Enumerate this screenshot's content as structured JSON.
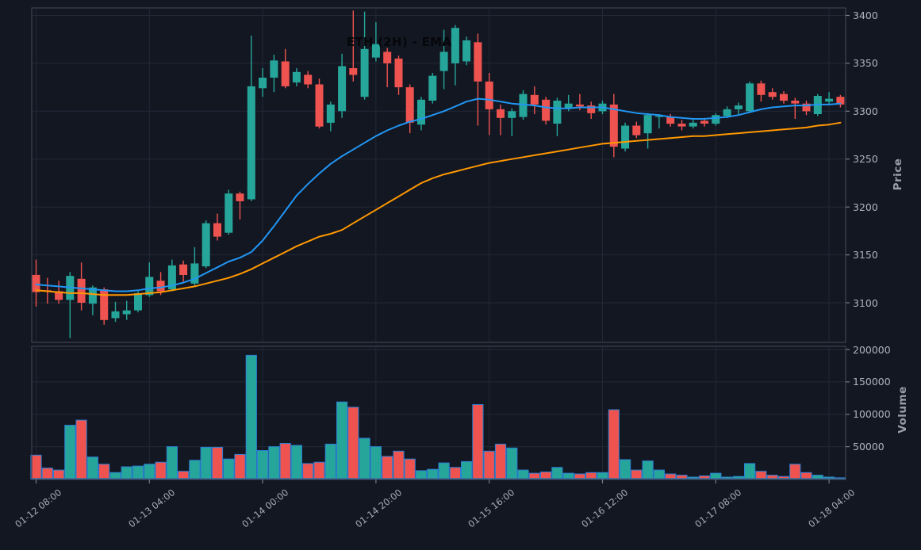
{
  "chart_data": {
    "type": "candlestick",
    "title": "ETH (2H) - EMA",
    "symbol": "ETH",
    "timeframe": "2H",
    "overlay": "EMA",
    "price_axis_label": "Price",
    "volume_axis_label": "Volume",
    "legend_position": "none",
    "grid": true,
    "price_ticks": [
      3100,
      3150,
      3200,
      3250,
      3300,
      3350,
      3400
    ],
    "volume_ticks": [
      50000,
      100000,
      150000,
      200000
    ],
    "price_axis_range": [
      3058,
      3408
    ],
    "volume_axis_range": [
      0,
      205000
    ],
    "x_tick_labels": [
      "01-12 08:00",
      "01-13 04:00",
      "01-14 00:00",
      "01-14 20:00",
      "01-15 16:00",
      "01-16 12:00",
      "01-17 08:00",
      "01-18 04:00"
    ],
    "x_tick_candle_indices": [
      0,
      10,
      20,
      30,
      40,
      50,
      60,
      70
    ],
    "ohlc": [
      [
        3129,
        3145,
        3096,
        3111
      ],
      [
        3113,
        3126,
        3099,
        3112
      ],
      [
        3112,
        3123,
        3099,
        3103
      ],
      [
        3103,
        3132,
        3063,
        3128
      ],
      [
        3125,
        3142,
        3092,
        3100
      ],
      [
        3099,
        3118,
        3087,
        3116
      ],
      [
        3114,
        3116,
        3077,
        3082
      ],
      [
        3084,
        3101,
        3080,
        3091
      ],
      [
        3088,
        3102,
        3082,
        3092
      ],
      [
        3092,
        3112,
        3090,
        3110
      ],
      [
        3108,
        3142,
        3106,
        3127
      ],
      [
        3123,
        3132,
        3108,
        3112
      ],
      [
        3114,
        3145,
        3112,
        3139
      ],
      [
        3140,
        3144,
        3122,
        3129
      ],
      [
        3120,
        3158,
        3118,
        3141
      ],
      [
        3138,
        3186,
        3136,
        3183
      ],
      [
        3183,
        3193,
        3165,
        3169
      ],
      [
        3173,
        3218,
        3171,
        3214
      ],
      [
        3214,
        3216,
        3187,
        3206
      ],
      [
        3208,
        3379,
        3206,
        3326
      ],
      [
        3324,
        3345,
        3315,
        3335
      ],
      [
        3335,
        3359,
        3320,
        3353
      ],
      [
        3352,
        3365,
        3324,
        3326
      ],
      [
        3330,
        3345,
        3326,
        3341
      ],
      [
        3338,
        3342,
        3324,
        3328
      ],
      [
        3328,
        3334,
        3282,
        3284
      ],
      [
        3288,
        3310,
        3279,
        3307
      ],
      [
        3300,
        3360,
        3293,
        3347
      ],
      [
        3345,
        3405,
        3331,
        3338
      ],
      [
        3315,
        3404,
        3312,
        3365
      ],
      [
        3356,
        3393,
        3352,
        3370
      ],
      [
        3362,
        3366,
        3325,
        3350
      ],
      [
        3355,
        3358,
        3317,
        3325
      ],
      [
        3325,
        3328,
        3277,
        3288
      ],
      [
        3286,
        3315,
        3280,
        3312
      ],
      [
        3311,
        3340,
        3308,
        3337
      ],
      [
        3342,
        3385,
        3323,
        3362
      ],
      [
        3350,
        3390,
        3327,
        3387
      ],
      [
        3352,
        3378,
        3348,
        3374
      ],
      [
        3372,
        3381,
        3285,
        3331
      ],
      [
        3331,
        3340,
        3275,
        3302
      ],
      [
        3302,
        3307,
        3275,
        3293
      ],
      [
        3293,
        3303,
        3274,
        3300
      ],
      [
        3294,
        3322,
        3291,
        3318
      ],
      [
        3317,
        3326,
        3297,
        3307
      ],
      [
        3312,
        3315,
        3286,
        3290
      ],
      [
        3287,
        3314,
        3274,
        3311
      ],
      [
        3303,
        3317,
        3300,
        3308
      ],
      [
        3307,
        3318,
        3301,
        3305
      ],
      [
        3306,
        3310,
        3292,
        3298
      ],
      [
        3300,
        3311,
        3297,
        3308
      ],
      [
        3307,
        3318,
        3252,
        3263
      ],
      [
        3261,
        3288,
        3258,
        3285
      ],
      [
        3285,
        3289,
        3272,
        3275
      ],
      [
        3277,
        3298,
        3261,
        3296
      ],
      [
        3294,
        3297,
        3282,
        3295
      ],
      [
        3294,
        3297,
        3284,
        3287
      ],
      [
        3287,
        3291,
        3280,
        3284
      ],
      [
        3284,
        3291,
        3282,
        3288
      ],
      [
        3290,
        3293,
        3284,
        3287
      ],
      [
        3287,
        3298,
        3285,
        3296
      ],
      [
        3295,
        3305,
        3293,
        3302
      ],
      [
        3302,
        3309,
        3297,
        3306
      ],
      [
        3300,
        3331,
        3298,
        3329
      ],
      [
        3329,
        3332,
        3310,
        3317
      ],
      [
        3320,
        3324,
        3312,
        3315
      ],
      [
        3318,
        3321,
        3308,
        3311
      ],
      [
        3311,
        3314,
        3292,
        3308
      ],
      [
        3308,
        3311,
        3296,
        3300
      ],
      [
        3297,
        3318,
        3295,
        3316
      ],
      [
        3310,
        3320,
        3307,
        3313
      ],
      [
        3315,
        3317,
        3304,
        3307
      ]
    ],
    "volume": [
      37000,
      17000,
      14000,
      83000,
      91000,
      34000,
      23000,
      10000,
      19000,
      20000,
      23000,
      26000,
      50000,
      12000,
      29000,
      49000,
      49000,
      31000,
      38000,
      191000,
      44000,
      50000,
      55000,
      52000,
      24000,
      26000,
      54000,
      119000,
      111000,
      63000,
      50000,
      35000,
      43000,
      31000,
      13000,
      15000,
      25000,
      18000,
      27000,
      115000,
      43000,
      54000,
      48000,
      14000,
      9000,
      11000,
      18000,
      9000,
      8000,
      10000,
      10000,
      107000,
      30000,
      14000,
      28000,
      14000,
      8000,
      6000,
      3000,
      5000,
      9000,
      3000,
      4000,
      24000,
      12000,
      6000,
      4000,
      23000,
      10000,
      6000,
      3000,
      2000
    ],
    "volume_bar_colors": [
      "r",
      "r",
      "r",
      "g",
      "r",
      "g",
      "r",
      "g",
      "g",
      "g",
      "g",
      "r",
      "g",
      "r",
      "g",
      "g",
      "r",
      "g",
      "r",
      "g",
      "g",
      "g",
      "r",
      "g",
      "r",
      "r",
      "g",
      "g",
      "r",
      "g",
      "g",
      "r",
      "r",
      "r",
      "g",
      "g",
      "g",
      "r",
      "g",
      "r",
      "r",
      "r",
      "g",
      "g",
      "r",
      "r",
      "g",
      "g",
      "r",
      "r",
      "g",
      "r",
      "g",
      "r",
      "g",
      "g",
      "r",
      "r",
      "g",
      "r",
      "g",
      "g",
      "g",
      "g",
      "r",
      "r",
      "r",
      "r",
      "r",
      "g",
      "g",
      "r"
    ],
    "series": [
      {
        "name": "ema-fast",
        "color": "#2196f3",
        "values": [
          3119,
          3118,
          3117,
          3116,
          3115,
          3114,
          3113,
          3112,
          3112,
          3113,
          3115,
          3116,
          3118,
          3121,
          3125,
          3131,
          3137,
          3143,
          3147,
          3153,
          3165,
          3180,
          3196,
          3212,
          3224,
          3235,
          3245,
          3253,
          3260,
          3267,
          3274,
          3280,
          3285,
          3289,
          3292,
          3296,
          3300,
          3305,
          3310,
          3313,
          3312,
          3310,
          3308,
          3307,
          3306,
          3304,
          3303,
          3303,
          3304,
          3304,
          3304,
          3302,
          3300,
          3298,
          3297,
          3296,
          3294,
          3293,
          3292,
          3292,
          3293,
          3294,
          3296,
          3299,
          3302,
          3304,
          3305,
          3306,
          3306,
          3307,
          3307,
          3308
        ]
      },
      {
        "name": "ema-slow",
        "color": "#ff9800",
        "values": [
          3113,
          3112,
          3111,
          3110,
          3110,
          3109,
          3108,
          3108,
          3108,
          3109,
          3110,
          3111,
          3113,
          3115,
          3117,
          3120,
          3123,
          3126,
          3130,
          3135,
          3141,
          3147,
          3153,
          3159,
          3164,
          3169,
          3172,
          3176,
          3183,
          3190,
          3197,
          3204,
          3211,
          3218,
          3225,
          3230,
          3234,
          3237,
          3240,
          3243,
          3246,
          3248,
          3250,
          3252,
          3254,
          3256,
          3258,
          3260,
          3262,
          3264,
          3266,
          3267,
          3268,
          3269,
          3270,
          3271,
          3272,
          3273,
          3274,
          3274,
          3275,
          3276,
          3277,
          3278,
          3279,
          3280,
          3281,
          3282,
          3283,
          3285,
          3286,
          3288
        ]
      }
    ],
    "colors": {
      "background": "#131722",
      "up": "#26a69a",
      "down": "#ef5350",
      "grid": "#212836",
      "spine": "#3d4352",
      "volume_baseline": "#3a6f9f",
      "volume_bar_edge": "#2b7fd4",
      "tick_mark": "#787b86",
      "tick_label": "#b0b3bc",
      "axis_title": "#9a9ea9",
      "title": "#05070a"
    }
  }
}
